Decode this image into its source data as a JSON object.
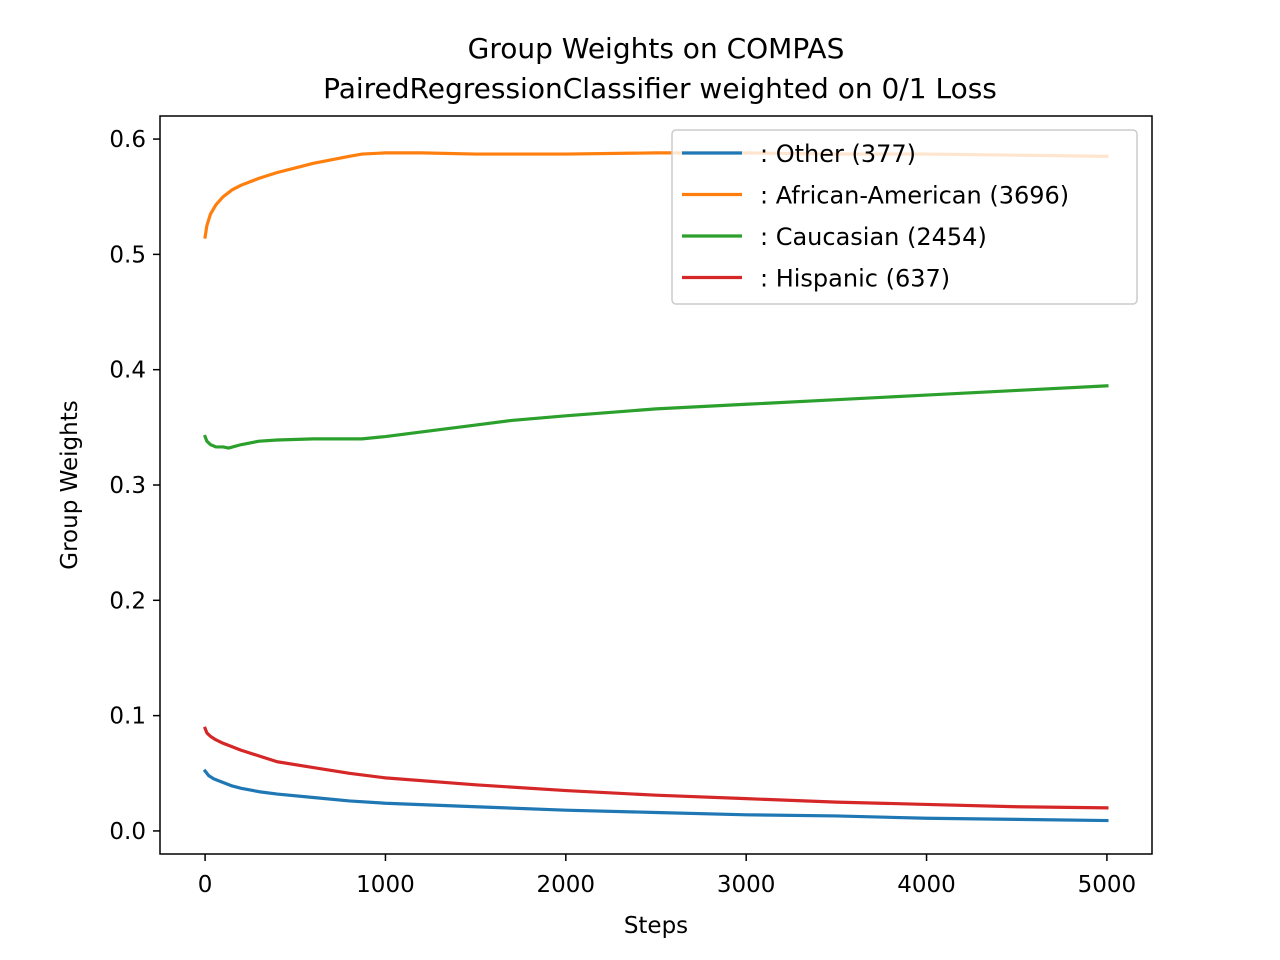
{
  "chart_data": {
    "type": "line",
    "title": "Group Weights on COMPAS",
    "subtitle": "PairedRegressionClassifier weighted on 0/1 Loss",
    "xlabel": "Steps",
    "ylabel": "Group Weights",
    "xlim": [
      -250,
      5250
    ],
    "ylim": [
      -0.02,
      0.62
    ],
    "xticks": [
      0,
      1000,
      2000,
      3000,
      4000,
      5000
    ],
    "xtick_labels": [
      "0",
      "1000",
      "2000",
      "3000",
      "4000",
      "5000"
    ],
    "yticks": [
      0.0,
      0.1,
      0.2,
      0.3,
      0.4,
      0.5,
      0.6
    ],
    "ytick_labels": [
      "0.0",
      "0.1",
      "0.2",
      "0.3",
      "0.4",
      "0.5",
      "0.6"
    ],
    "grid": false,
    "legend_position": "top-right",
    "series": [
      {
        "name": ": Other  (377)",
        "color": "#1f77b4",
        "x": [
          0,
          20,
          50,
          100,
          150,
          200,
          300,
          400,
          600,
          800,
          1000,
          1500,
          2000,
          2500,
          3000,
          3500,
          4000,
          4500,
          5000
        ],
        "y": [
          0.052,
          0.048,
          0.045,
          0.042,
          0.039,
          0.037,
          0.034,
          0.032,
          0.029,
          0.026,
          0.024,
          0.021,
          0.018,
          0.016,
          0.014,
          0.013,
          0.011,
          0.01,
          0.009
        ]
      },
      {
        "name": ": African-American  (3696)",
        "color": "#ff7f0e",
        "x": [
          0,
          10,
          30,
          60,
          100,
          150,
          200,
          300,
          400,
          500,
          600,
          700,
          800,
          870,
          1000,
          1200,
          1500,
          1700,
          2000,
          2500,
          3000,
          3500,
          4000,
          4500,
          5000
        ],
        "y": [
          0.515,
          0.525,
          0.535,
          0.543,
          0.55,
          0.556,
          0.56,
          0.566,
          0.571,
          0.575,
          0.579,
          0.582,
          0.585,
          0.587,
          0.588,
          0.588,
          0.587,
          0.587,
          0.587,
          0.588,
          0.588,
          0.587,
          0.587,
          0.586,
          0.585
        ]
      },
      {
        "name": ": Caucasian  (2454)",
        "color": "#2ca02c",
        "x": [
          0,
          10,
          30,
          60,
          100,
          130,
          200,
          300,
          400,
          600,
          870,
          1000,
          1200,
          1500,
          1700,
          2000,
          2500,
          3000,
          3500,
          4000,
          4500,
          5000
        ],
        "y": [
          0.342,
          0.338,
          0.335,
          0.333,
          0.333,
          0.332,
          0.335,
          0.338,
          0.339,
          0.34,
          0.34,
          0.342,
          0.346,
          0.352,
          0.356,
          0.36,
          0.366,
          0.37,
          0.374,
          0.378,
          0.382,
          0.386
        ]
      },
      {
        "name": ": Hispanic  (637)",
        "color": "#d62728",
        "x": [
          0,
          10,
          30,
          60,
          100,
          150,
          200,
          300,
          400,
          600,
          800,
          1000,
          1500,
          2000,
          2500,
          3000,
          3500,
          4000,
          4500,
          5000
        ],
        "y": [
          0.089,
          0.085,
          0.082,
          0.079,
          0.076,
          0.073,
          0.07,
          0.065,
          0.06,
          0.055,
          0.05,
          0.046,
          0.04,
          0.035,
          0.031,
          0.028,
          0.025,
          0.023,
          0.021,
          0.02
        ]
      }
    ]
  }
}
